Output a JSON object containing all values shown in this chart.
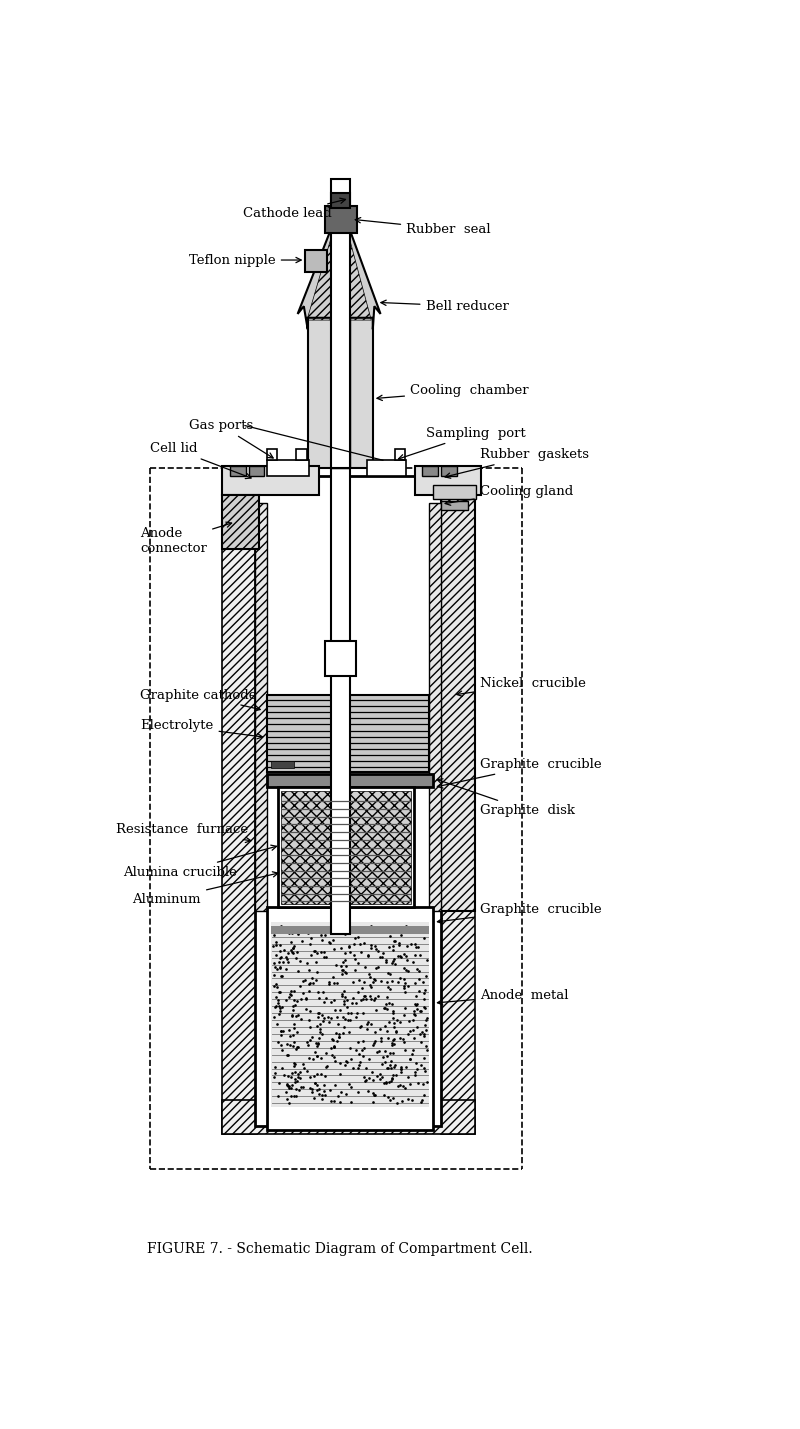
{
  "title": "FIGURE 7. - Schematic Diagram of Compartment Cell.",
  "bg_color": "#ffffff",
  "labels": {
    "cathode_lead": "Cathode lead",
    "rubber_seal": "Rubber  seal",
    "teflon_nipple": "Teflon nipple",
    "bell_reducer": "Bell reducer",
    "cooling_chamber": "Cooling  chamber",
    "gas_ports": "Gas ports",
    "sampling_port": "Sampling  port",
    "cell_lid": "Cell lid",
    "rubber_gaskets": "Rubber  gaskets",
    "cooling_gland": "Cooling gland",
    "anode_connector": "Anode\nconnector",
    "graphite_cathode": "Graphite cathode",
    "nickel_crucible": "Nickel  crucible",
    "electrolyte": "Electrolyte",
    "graphite_crucible_top": "Graphite  crucible",
    "graphite_disk": "Graphite  disk",
    "resistance_furnace": "Resistance  furnace",
    "alumina_crucible": "Alumina crucible",
    "aluminum": "Aluminum",
    "graphite_crucible_bot": "Graphite  crucible",
    "anode_metal": "Anode  metal"
  }
}
